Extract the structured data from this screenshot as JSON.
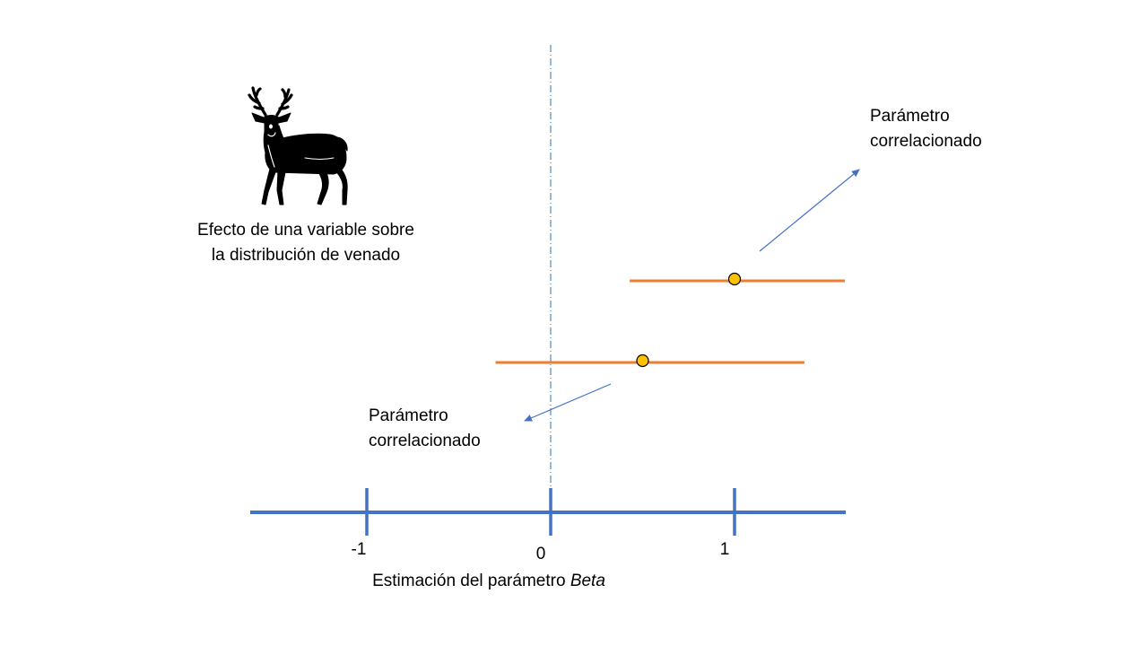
{
  "deer_caption": {
    "line1": "Efecto de una variable sobre",
    "line2": "la distribución de venado"
  },
  "annotations": {
    "upper": {
      "line1": "Parámetro",
      "line2": "correlacionado"
    },
    "lower": {
      "line1": "Parámetro",
      "line2": "correlacionado"
    }
  },
  "axis": {
    "title_text": "Estimación del parámetro ",
    "title_italic": "Beta",
    "ticks": [
      "-1",
      "0",
      "1"
    ],
    "range": [
      -1.6,
      1.6
    ]
  },
  "estimates": [
    {
      "point": 1.0,
      "low": 0.43,
      "high": 1.6
    },
    {
      "point": 0.5,
      "low": -0.3,
      "high": 1.38
    }
  ],
  "colors": {
    "axis": "#4472C4",
    "interval": "#ED7D31",
    "point_fill": "#FFC000",
    "point_stroke": "#000000",
    "arrow": "#4472C4",
    "zero_line": "#2E75B6"
  },
  "icons": {
    "deer": "deer-silhouette-icon"
  }
}
